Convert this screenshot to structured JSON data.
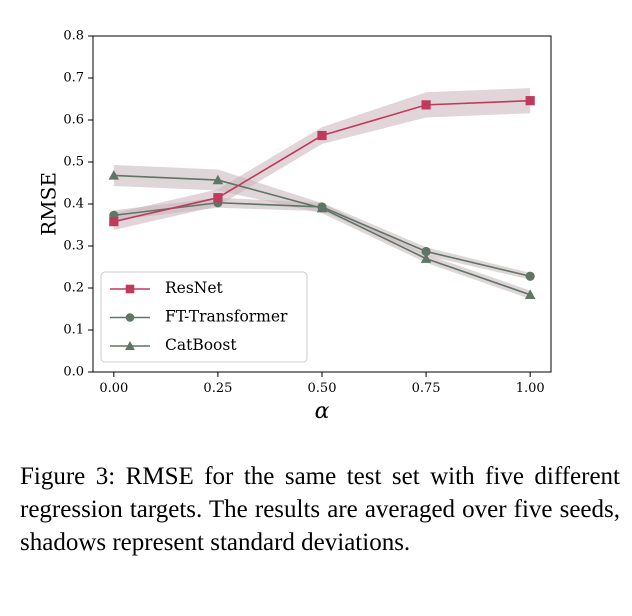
{
  "chart_data": {
    "type": "line",
    "xlabel": "α",
    "ylabel": "RMSE",
    "x": [
      0.0,
      0.25,
      0.5,
      0.75,
      1.0
    ],
    "x_tick_labels": [
      "0.00",
      "0.25",
      "0.50",
      "0.75",
      "1.00"
    ],
    "xlim": [
      -0.05,
      1.05
    ],
    "ylim": [
      0.0,
      0.8
    ],
    "y_ticks": [
      0.0,
      0.1,
      0.2,
      0.3,
      0.4,
      0.5,
      0.6,
      0.7,
      0.8
    ],
    "y_tick_labels": [
      "0.0",
      "0.1",
      "0.2",
      "0.3",
      "0.4",
      "0.5",
      "0.6",
      "0.7",
      "0.8"
    ],
    "grid": false,
    "legend_position": "lower-left",
    "series": [
      {
        "name": "ResNet",
        "marker": "square",
        "color": "#c03a5c",
        "band_color": "#c9b3bb",
        "values": [
          0.358,
          0.415,
          0.563,
          0.636,
          0.646
        ],
        "std": [
          0.02,
          0.02,
          0.02,
          0.03,
          0.03
        ]
      },
      {
        "name": "FT-Transformer",
        "marker": "circle",
        "color": "#5f7566",
        "band_color": "#c4b4b9",
        "values": [
          0.373,
          0.403,
          0.393,
          0.287,
          0.228
        ],
        "std": [
          0.012,
          0.012,
          0.01,
          0.01,
          0.008
        ]
      },
      {
        "name": "CatBoost",
        "marker": "triangle",
        "color": "#5f7566",
        "band_color": "#c4b4b9",
        "values": [
          0.468,
          0.457,
          0.39,
          0.27,
          0.184
        ],
        "std": [
          0.025,
          0.025,
          0.012,
          0.01,
          0.01
        ]
      }
    ]
  },
  "caption": "Figure 3: RMSE for the same test set with five different regression targets. The results are averaged over five seeds, shadows represent standard deviations."
}
